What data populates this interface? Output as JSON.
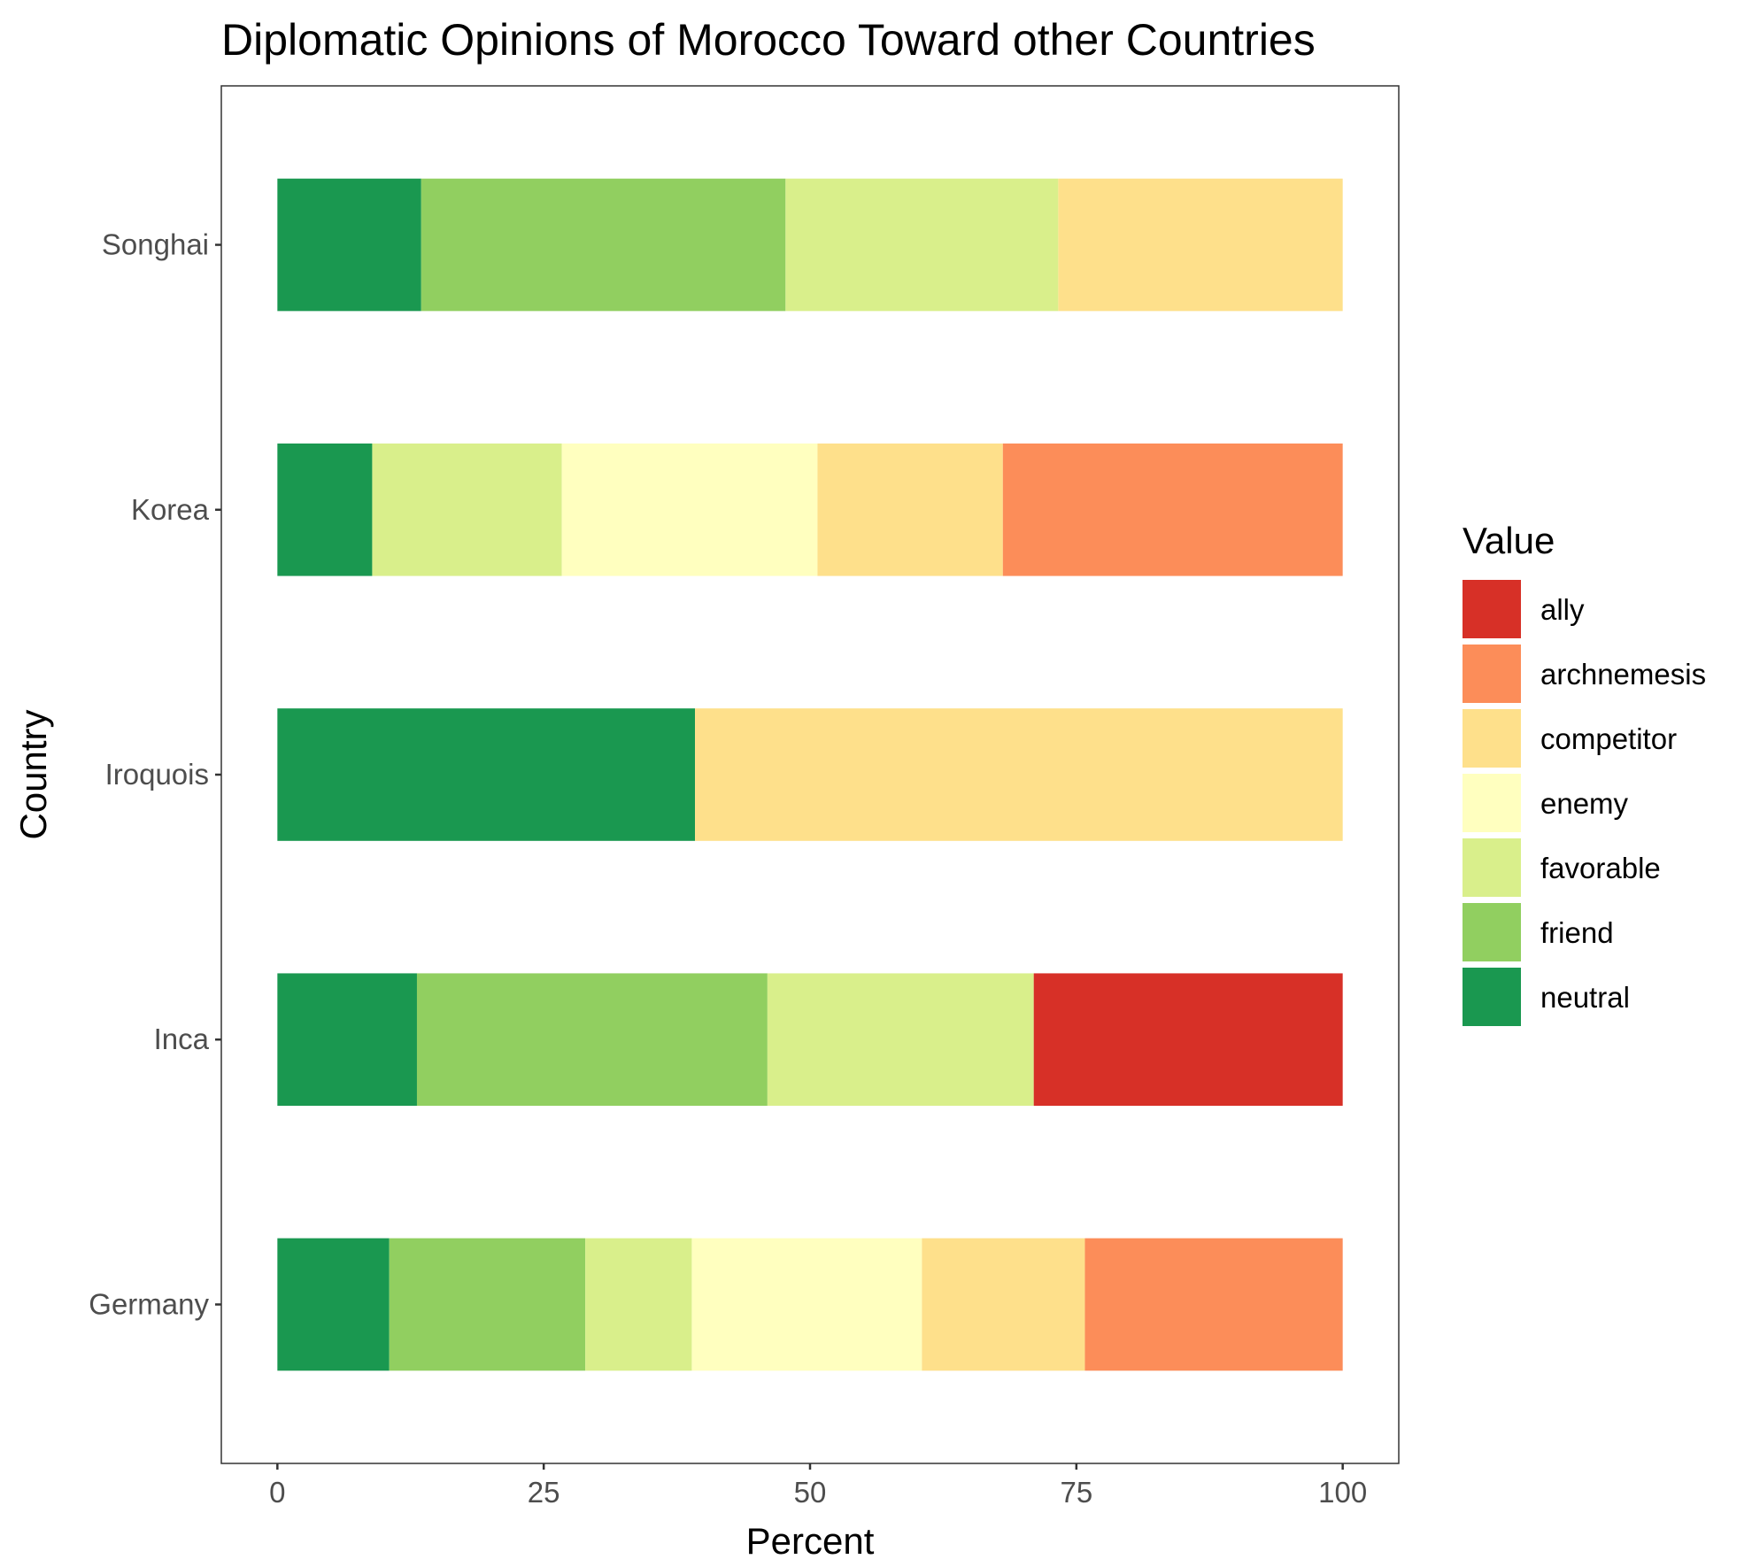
{
  "chart_data": {
    "type": "bar",
    "orientation": "horizontal",
    "stacked": true,
    "title": "Diplomatic Opinions of Morocco Toward other Countries",
    "xlabel": "Percent",
    "ylabel": "Country",
    "xlim": [
      0,
      100
    ],
    "x_ticks": [
      "0",
      "25",
      "50",
      "75",
      "100"
    ],
    "x_tick_values": [
      0,
      25,
      50,
      75,
      100
    ],
    "categories": [
      "Germany",
      "Inca",
      "Iroquois",
      "Korea",
      "Songhai"
    ],
    "grid": false,
    "legend": {
      "title": "Value",
      "placement": "right",
      "entries": [
        "ally",
        "archnemesis",
        "competitor",
        "enemy",
        "favorable",
        "friend",
        "neutral"
      ]
    },
    "colors": {
      "ally": "#d73027",
      "archnemesis": "#fc8d59",
      "competitor": "#fee08b",
      "enemy": "#ffffbf",
      "favorable": "#d9ef8b",
      "friend": "#91cf60",
      "neutral": "#1a9850"
    },
    "stack_order": [
      "neutral",
      "friend",
      "favorable",
      "enemy",
      "competitor",
      "archnemesis",
      "ally"
    ],
    "series": [
      {
        "name": "neutral",
        "values": [
          10.5,
          13.1,
          39.2,
          8.9,
          13.5
        ]
      },
      {
        "name": "friend",
        "values": [
          18.4,
          32.9,
          0,
          0,
          34.2
        ]
      },
      {
        "name": "favorable",
        "values": [
          10.0,
          25.0,
          0,
          17.8,
          25.6
        ]
      },
      {
        "name": "enemy",
        "values": [
          21.6,
          0,
          0,
          24.0,
          0
        ]
      },
      {
        "name": "competitor",
        "values": [
          15.3,
          0,
          60.8,
          17.4,
          26.7
        ]
      },
      {
        "name": "archnemesis",
        "values": [
          24.2,
          0,
          0,
          31.9,
          0
        ]
      },
      {
        "name": "ally",
        "values": [
          0,
          29.0,
          0,
          0,
          0
        ]
      }
    ]
  }
}
